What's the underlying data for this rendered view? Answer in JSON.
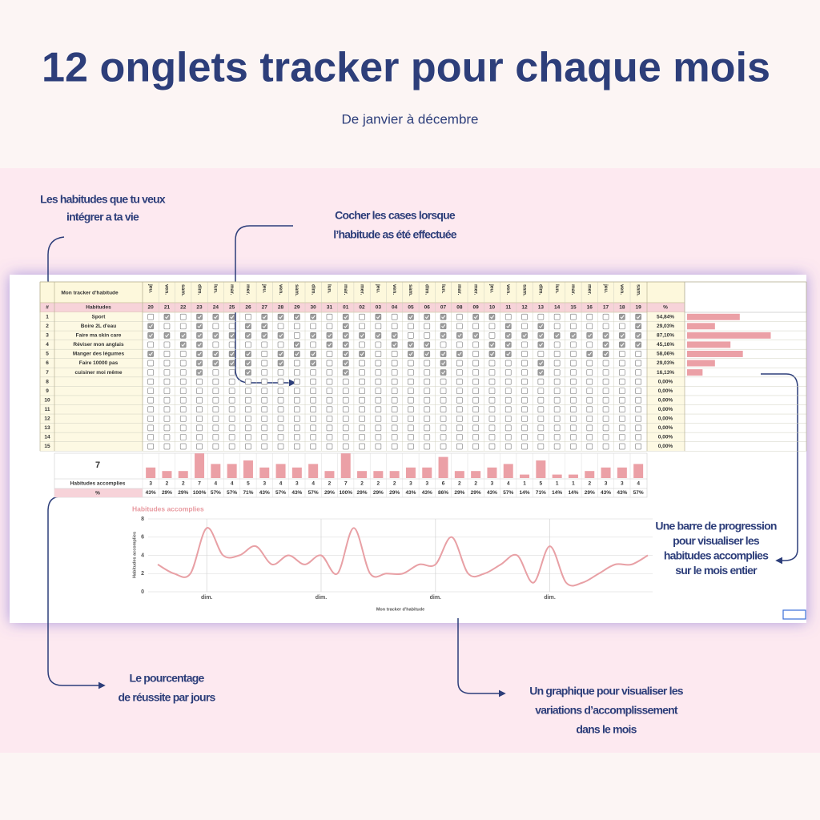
{
  "header": {
    "title": "12 onglets tracker pour chaque mois",
    "subtitle": "De janvier à décembre"
  },
  "annotations": [
    {
      "lines": [
        "Les habitudes que tu veux",
        "intégrer a ta vie"
      ]
    },
    {
      "lines": [
        "Cocher les cases lorsque",
        "l’habitude as été effectuée"
      ]
    },
    {
      "lines": [
        "Une barre de progression",
        "pour visualiser les",
        "habitudes accomplies",
        "sur le mois entier"
      ]
    },
    {
      "lines": [
        "Le pourcentage",
        "de réussite par jours"
      ]
    },
    {
      "lines": [
        "Un graphique pour visualiser les",
        "variations d’accomplissement",
        "dans le mois"
      ]
    }
  ],
  "tracker": {
    "title": "Mon tracker d'habitude",
    "num_header": "#",
    "habits_header": "Habitudes",
    "percent_header": "%",
    "weekdays": [
      "jeu.",
      "ven.",
      "sam.",
      "dim.",
      "lun.",
      "mar.",
      "mer.",
      "jeu.",
      "ven.",
      "sam.",
      "dim.",
      "lun.",
      "mar.",
      "mer.",
      "jeu.",
      "ven.",
      "sam.",
      "dim.",
      "lun.",
      "mar.",
      "mer.",
      "jeu.",
      "ven.",
      "sam.",
      "dim.",
      "lun.",
      "mar.",
      "mer.",
      "jeu.",
      "ven.",
      "sam."
    ],
    "dates": [
      "20",
      "21",
      "22",
      "23",
      "24",
      "25",
      "26",
      "27",
      "28",
      "29",
      "30",
      "31",
      "01",
      "02",
      "03",
      "04",
      "05",
      "06",
      "07",
      "08",
      "09",
      "10",
      "11",
      "12",
      "13",
      "14",
      "15",
      "16",
      "17",
      "18",
      "19"
    ],
    "rows": [
      {
        "number": "1",
        "name": "Sport",
        "checks": [
          0,
          1,
          0,
          1,
          1,
          1,
          0,
          1,
          1,
          1,
          1,
          0,
          1,
          0,
          1,
          0,
          1,
          1,
          1,
          0,
          1,
          1,
          0,
          0,
          0,
          0,
          0,
          0,
          0,
          1,
          1
        ],
        "percent": 54.84,
        "percent_label": "54,84%"
      },
      {
        "number": "2",
        "name": "Boire 2L d'eau",
        "checks": [
          1,
          0,
          0,
          1,
          0,
          0,
          1,
          1,
          0,
          0,
          0,
          0,
          1,
          0,
          0,
          0,
          0,
          0,
          1,
          0,
          0,
          0,
          1,
          0,
          1,
          0,
          0,
          0,
          0,
          0,
          1
        ],
        "percent": 29.03,
        "percent_label": "29,03%"
      },
      {
        "number": "3",
        "name": "Faire ma skin care",
        "checks": [
          1,
          1,
          1,
          1,
          1,
          1,
          1,
          1,
          1,
          0,
          1,
          1,
          1,
          1,
          1,
          1,
          0,
          0,
          1,
          1,
          1,
          0,
          1,
          1,
          1,
          1,
          1,
          1,
          1,
          1,
          1
        ],
        "percent": 87.1,
        "percent_label": "87,10%"
      },
      {
        "number": "4",
        "name": "Réviser mon anglais",
        "checks": [
          0,
          0,
          1,
          1,
          0,
          0,
          0,
          0,
          0,
          1,
          0,
          1,
          1,
          0,
          0,
          1,
          1,
          1,
          0,
          0,
          0,
          1,
          1,
          0,
          1,
          0,
          0,
          0,
          1,
          1,
          1
        ],
        "percent": 45.16,
        "percent_label": "45,16%"
      },
      {
        "number": "5",
        "name": "Manger des légumes",
        "checks": [
          1,
          0,
          0,
          1,
          1,
          1,
          1,
          0,
          1,
          1,
          1,
          0,
          1,
          1,
          0,
          0,
          1,
          1,
          1,
          1,
          0,
          1,
          1,
          0,
          0,
          0,
          0,
          1,
          1,
          0,
          0
        ],
        "percent": 58.06,
        "percent_label": "58,06%"
      },
      {
        "number": "6",
        "name": "Faire 10000 pas",
        "checks": [
          0,
          0,
          0,
          1,
          1,
          1,
          1,
          0,
          1,
          0,
          1,
          0,
          1,
          0,
          0,
          0,
          0,
          0,
          1,
          0,
          0,
          0,
          0,
          0,
          1,
          0,
          0,
          0,
          0,
          0,
          0
        ],
        "percent": 29.03,
        "percent_label": "29,03%"
      },
      {
        "number": "7",
        "name": "cuisiner moi même",
        "checks": [
          0,
          0,
          0,
          1,
          0,
          0,
          1,
          0,
          0,
          0,
          0,
          0,
          1,
          0,
          0,
          0,
          0,
          0,
          1,
          0,
          0,
          0,
          0,
          0,
          1,
          0,
          0,
          0,
          0,
          0,
          0
        ],
        "percent": 16.13,
        "percent_label": "16,13%"
      },
      {
        "number": "8",
        "checks": [
          0,
          0,
          0,
          0,
          0,
          0,
          0,
          0,
          0,
          0,
          0,
          0,
          0,
          0,
          0,
          0,
          0,
          0,
          0,
          0,
          0,
          0,
          0,
          0,
          0,
          0,
          0,
          0,
          0,
          0,
          0
        ],
        "percent": 0,
        "percent_label": "0,00%"
      },
      {
        "number": "9",
        "checks": [
          0,
          0,
          0,
          0,
          0,
          0,
          0,
          0,
          0,
          0,
          0,
          0,
          0,
          0,
          0,
          0,
          0,
          0,
          0,
          0,
          0,
          0,
          0,
          0,
          0,
          0,
          0,
          0,
          0,
          0,
          0
        ],
        "percent": 0,
        "percent_label": "0,00%"
      },
      {
        "number": "10",
        "checks": [
          0,
          0,
          0,
          0,
          0,
          0,
          0,
          0,
          0,
          0,
          0,
          0,
          0,
          0,
          0,
          0,
          0,
          0,
          0,
          0,
          0,
          0,
          0,
          0,
          0,
          0,
          0,
          0,
          0,
          0,
          0
        ],
        "percent": 0,
        "percent_label": "0,00%"
      },
      {
        "number": "11",
        "checks": [
          0,
          0,
          0,
          0,
          0,
          0,
          0,
          0,
          0,
          0,
          0,
          0,
          0,
          0,
          0,
          0,
          0,
          0,
          0,
          0,
          0,
          0,
          0,
          0,
          0,
          0,
          0,
          0,
          0,
          0,
          0
        ],
        "percent": 0,
        "percent_label": "0,00%"
      },
      {
        "number": "12",
        "checks": [
          0,
          0,
          0,
          0,
          0,
          0,
          0,
          0,
          0,
          0,
          0,
          0,
          0,
          0,
          0,
          0,
          0,
          0,
          0,
          0,
          0,
          0,
          0,
          0,
          0,
          0,
          0,
          0,
          0,
          0,
          0
        ],
        "percent": 0,
        "percent_label": "0,00%"
      },
      {
        "number": "13",
        "checks": [
          0,
          0,
          0,
          0,
          0,
          0,
          0,
          0,
          0,
          0,
          0,
          0,
          0,
          0,
          0,
          0,
          0,
          0,
          0,
          0,
          0,
          0,
          0,
          0,
          0,
          0,
          0,
          0,
          0,
          0,
          0
        ],
        "percent": 0,
        "percent_label": "0,00%"
      },
      {
        "number": "14",
        "checks": [
          0,
          0,
          0,
          0,
          0,
          0,
          0,
          0,
          0,
          0,
          0,
          0,
          0,
          0,
          0,
          0,
          0,
          0,
          0,
          0,
          0,
          0,
          0,
          0,
          0,
          0,
          0,
          0,
          0,
          0,
          0
        ],
        "percent": 0,
        "percent_label": "0,00%"
      },
      {
        "number": "15",
        "checks": [
          0,
          0,
          0,
          0,
          0,
          0,
          0,
          0,
          0,
          0,
          0,
          0,
          0,
          0,
          0,
          0,
          0,
          0,
          0,
          0,
          0,
          0,
          0,
          0,
          0,
          0,
          0,
          0,
          0,
          0,
          0
        ],
        "percent": 0,
        "percent_label": "0,00%"
      }
    ],
    "bar_color": "#eba0a6",
    "habit_count": 7,
    "daily_label": "Habitudes accomplies",
    "daily_percent_header": "%",
    "daily_counts": [
      3,
      2,
      2,
      7,
      4,
      4,
      5,
      3,
      4,
      3,
      4,
      2,
      7,
      2,
      2,
      2,
      3,
      3,
      6,
      2,
      2,
      3,
      4,
      1,
      5,
      1,
      1,
      2,
      3,
      3,
      4
    ],
    "daily_percents": [
      43,
      29,
      29,
      100,
      57,
      57,
      71,
      43,
      57,
      43,
      57,
      29,
      100,
      29,
      29,
      29,
      43,
      43,
      86,
      29,
      29,
      43,
      57,
      14,
      71,
      14,
      14,
      29,
      43,
      43,
      57
    ],
    "daily_percent_labels": [
      "43%",
      "29%",
      "29%",
      "100%",
      "57%",
      "57%",
      "71%",
      "43%",
      "57%",
      "43%",
      "57%",
      "29%",
      "100%",
      "29%",
      "29%",
      "29%",
      "43%",
      "43%",
      "86%",
      "29%",
      "29%",
      "43%",
      "57%",
      "14%",
      "71%",
      "14%",
      "14%",
      "29%",
      "43%",
      "43%",
      "57%"
    ]
  },
  "chart_data": {
    "type": "line",
    "title": "Habitudes accomplies",
    "y_label": "Habitudes accomplies",
    "x_label": "Mon tracker d'habitude",
    "categories": [
      null,
      null,
      null,
      "dim.",
      null,
      null,
      null,
      null,
      null,
      null,
      "dim.",
      null,
      null,
      null,
      null,
      null,
      null,
      "dim.",
      null,
      null,
      null,
      null,
      null,
      null,
      "dim.",
      null,
      null,
      null,
      null,
      null,
      null
    ],
    "values": [
      3,
      2,
      2,
      7,
      4,
      4,
      5,
      3,
      4,
      3,
      4,
      2,
      7,
      2,
      2,
      2,
      3,
      3,
      6,
      2,
      2,
      3,
      4,
      1,
      5,
      1,
      1,
      2,
      3,
      3,
      4
    ],
    "color": "#e8a0a5",
    "ylim": [
      0,
      8
    ],
    "yticks": [
      0,
      2,
      4,
      6,
      8
    ],
    "grid": true
  }
}
